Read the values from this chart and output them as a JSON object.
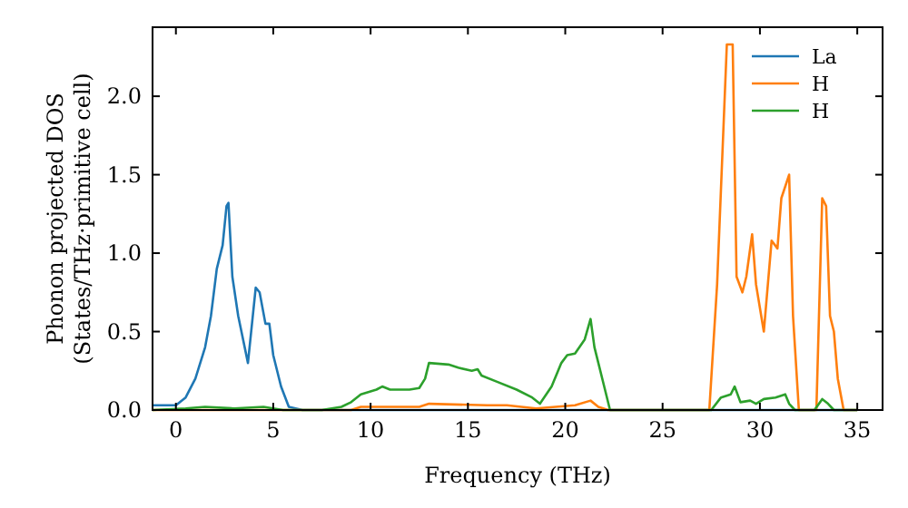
{
  "chart_data": {
    "type": "line",
    "xlabel": "Frequency (THz)",
    "ylabel": "Phonon projected DOS\n(States/THz·primitive cell)",
    "xlim": [
      -1.2,
      36.3
    ],
    "ylim": [
      0,
      2.44
    ],
    "xticks": [
      0,
      5,
      10,
      15,
      20,
      25,
      30,
      35
    ],
    "yticks": [
      {
        "value": 0,
        "label": "0.0"
      },
      {
        "value": 0.5,
        "label": "0.5"
      },
      {
        "value": 1,
        "label": "1.0"
      },
      {
        "value": 1.5,
        "label": "1.5"
      },
      {
        "value": 2,
        "label": "2.0"
      }
    ],
    "legend": "top right",
    "grid": false,
    "series": [
      {
        "name": "La",
        "color": "#1f77b4",
        "x": [
          -1.2,
          0,
          0.5,
          1,
          1.5,
          1.8,
          2.1,
          2.4,
          2.6,
          2.7,
          2.9,
          3.2,
          3.7,
          4.1,
          4.3,
          4.6,
          4.8,
          5.0,
          5.4,
          5.8,
          6.5,
          35
        ],
        "values": [
          0.03,
          0.03,
          0.08,
          0.2,
          0.4,
          0.6,
          0.9,
          1.05,
          1.3,
          1.32,
          0.85,
          0.6,
          0.3,
          0.78,
          0.75,
          0.55,
          0.55,
          0.35,
          0.15,
          0.02,
          0,
          0
        ]
      },
      {
        "name": "H",
        "color": "#ff7f0e",
        "x": [
          -1.2,
          9,
          9.5,
          12.5,
          13,
          16,
          17,
          18.5,
          19.5,
          20.5,
          21.3,
          21.7,
          22.2,
          27.4,
          27.8,
          28.3,
          28.6,
          28.8,
          29.1,
          29.3,
          29.6,
          29.8,
          30.2,
          30.6,
          30.9,
          31.1,
          31.5,
          31.7,
          32.0,
          32.9,
          33.2,
          33.4,
          33.6,
          33.8,
          34.0,
          34.3,
          35
        ],
        "values": [
          0,
          0,
          0.02,
          0.02,
          0.04,
          0.03,
          0.03,
          0.01,
          0.02,
          0.03,
          0.06,
          0.02,
          0,
          0,
          0.8,
          2.33,
          2.33,
          0.85,
          0.75,
          0.85,
          1.12,
          0.8,
          0.5,
          1.08,
          1.03,
          1.35,
          1.5,
          0.6,
          0,
          0,
          1.35,
          1.3,
          0.6,
          0.5,
          0.2,
          0,
          0
        ]
      },
      {
        "name": "H",
        "color": "#2ca02c",
        "x": [
          -1.2,
          0.5,
          1.5,
          3,
          4.5,
          5.5,
          7.5,
          8.5,
          9,
          9.5,
          10.3,
          10.6,
          11,
          12,
          12.5,
          12.8,
          13,
          14,
          14.5,
          15.2,
          15.5,
          15.7,
          16.5,
          17.5,
          18.3,
          18.7,
          19.3,
          19.8,
          20.1,
          20.5,
          21,
          21.3,
          21.5,
          22,
          22.3,
          27.5,
          28,
          28.5,
          28.7,
          29,
          29.5,
          29.8,
          30.2,
          30.8,
          31.3,
          31.5,
          31.8,
          32.8,
          33.2,
          33.5,
          33.8,
          35
        ],
        "values": [
          0,
          0.01,
          0.02,
          0.01,
          0.02,
          0,
          0,
          0.02,
          0.05,
          0.1,
          0.13,
          0.15,
          0.13,
          0.13,
          0.14,
          0.2,
          0.3,
          0.29,
          0.27,
          0.25,
          0.26,
          0.22,
          0.18,
          0.13,
          0.08,
          0.04,
          0.15,
          0.3,
          0.35,
          0.36,
          0.45,
          0.58,
          0.4,
          0.15,
          0,
          0,
          0.08,
          0.1,
          0.15,
          0.05,
          0.06,
          0.04,
          0.07,
          0.08,
          0.1,
          0.04,
          0,
          0,
          0.07,
          0.04,
          0,
          0
        ]
      }
    ]
  }
}
